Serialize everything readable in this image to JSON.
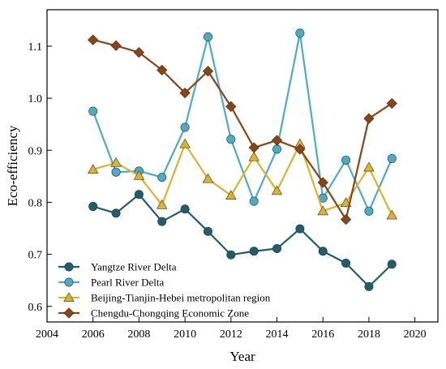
{
  "chart_data": {
    "type": "line",
    "xlabel": "Year",
    "ylabel": "Eco-efficiency",
    "xlim": [
      2004,
      2021
    ],
    "ylim": [
      0.57,
      1.17
    ],
    "xticks": [
      2004,
      2006,
      2008,
      2010,
      2012,
      2014,
      2016,
      2018,
      2020
    ],
    "yticks": [
      0.6,
      0.7,
      0.8,
      0.9,
      1.0,
      1.1
    ],
    "xtick_labels": [
      "2004",
      "2006",
      "2008",
      "2010",
      "2012",
      "2014",
      "2016",
      "2018",
      "2020"
    ],
    "ytick_labels": [
      "0.6",
      "0.7",
      "0.8",
      "0.9",
      "1.0",
      "1.1"
    ],
    "grid": false,
    "legend_position": "bottom-left",
    "x": [
      2006,
      2007,
      2008,
      2009,
      2010,
      2011,
      2012,
      2013,
      2014,
      2015,
      2016,
      2017,
      2018,
      2019
    ],
    "series": [
      {
        "name": "Yangtze River Delta",
        "marker": "circle",
        "color": "#1f5f6b",
        "values": [
          0.792,
          0.779,
          0.815,
          0.763,
          0.787,
          0.744,
          0.699,
          0.706,
          0.711,
          0.749,
          0.706,
          0.683,
          0.638,
          0.681
        ]
      },
      {
        "name": "Pearl River Delta",
        "marker": "circle",
        "color": "#4bacc6",
        "values": [
          0.975,
          0.858,
          0.86,
          0.848,
          0.944,
          1.118,
          0.921,
          0.802,
          0.902,
          1.125,
          0.808,
          0.881,
          0.783,
          0.884
        ]
      },
      {
        "name": "Beijing-Tianjin-Hebei metropolitan region",
        "marker": "triangle",
        "color": "#e0b12a",
        "values": [
          0.863,
          0.876,
          0.851,
          0.795,
          0.912,
          0.845,
          0.813,
          0.887,
          0.822,
          0.912,
          0.783,
          0.799,
          0.867,
          0.775
        ]
      },
      {
        "name": "Chengdu-Chongqing Economic Zone",
        "marker": "diamond",
        "color": "#8b4513",
        "values": [
          1.112,
          1.101,
          1.088,
          1.054,
          1.01,
          1.052,
          0.984,
          0.905,
          0.919,
          0.902,
          0.838,
          0.767,
          0.961,
          0.99
        ]
      }
    ]
  }
}
